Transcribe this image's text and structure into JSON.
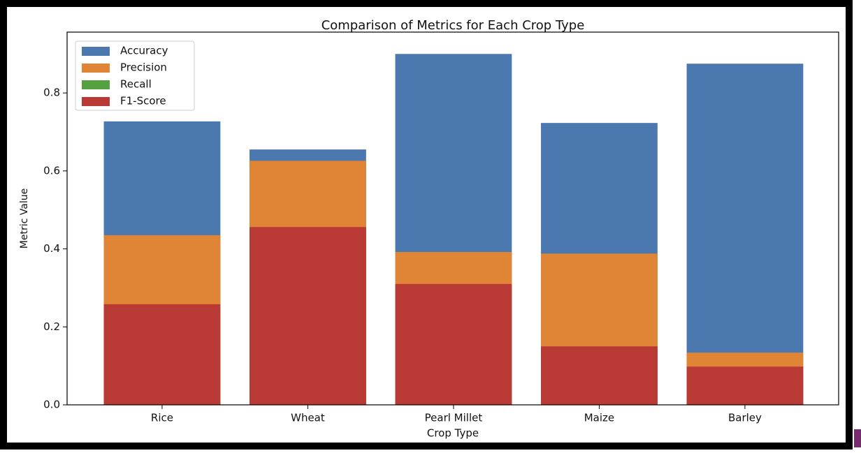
{
  "chart_data": {
    "type": "bar",
    "title": "Comparison of Metrics for Each Crop Type",
    "x_label": "Crop Type",
    "y_label": "Metric Value",
    "categories": [
      "Rice",
      "Wheat",
      "Pearl Millet",
      "Maize",
      "Barley"
    ],
    "series": [
      {
        "name": "Accuracy",
        "color": "#4c78b0",
        "values": [
          0.727,
          0.655,
          0.9,
          0.723,
          0.875
        ]
      },
      {
        "name": "Precision",
        "color": "#e08535",
        "values": [
          0.435,
          0.626,
          0.392,
          0.388,
          0.134
        ]
      },
      {
        "name": "Recall",
        "color": "#55a040",
        "values": [
          0.25,
          0.45,
          0.3,
          0.14,
          0.09
        ]
      },
      {
        "name": "F1-Score",
        "color": "#b93a34",
        "values": [
          0.258,
          0.456,
          0.31,
          0.15,
          0.098
        ]
      }
    ],
    "ylim": [
      0,
      0.956
    ],
    "yticks": [
      0.0,
      0.2,
      0.4,
      0.6,
      0.8
    ],
    "legend": "upper-left"
  }
}
